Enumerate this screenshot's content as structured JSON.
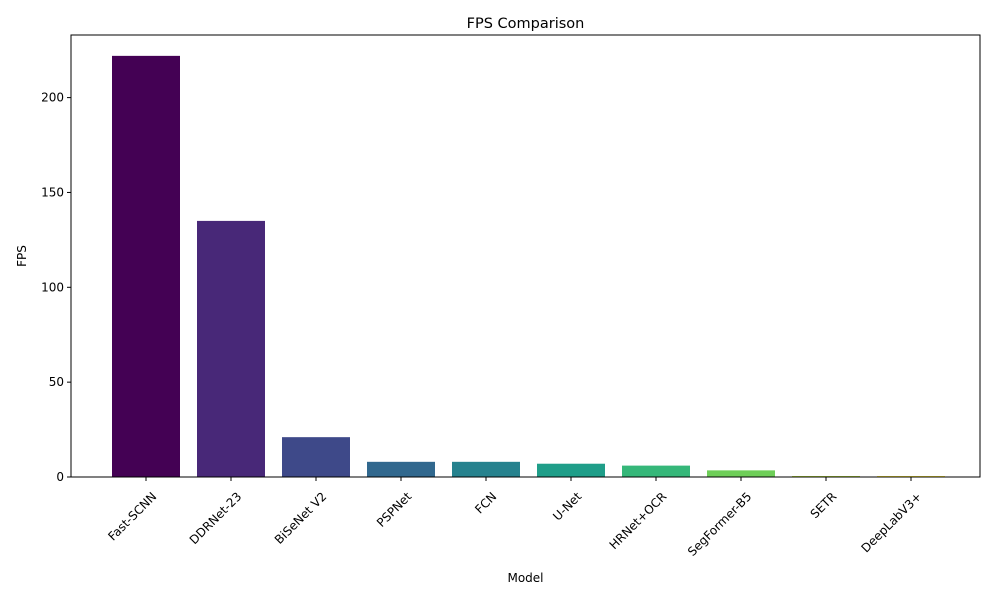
{
  "chart_data": {
    "type": "bar",
    "title": "FPS Comparison",
    "xlabel": "Model",
    "ylabel": "FPS",
    "categories": [
      "Fast-SCNN",
      "DDRNet-23",
      "BiSeNet V2",
      "PSPNet",
      "FCN",
      "U-Net",
      "HRNet+OCR",
      "SegFormer-B5",
      "SETR",
      "DeepLabV3+"
    ],
    "values": [
      222,
      135,
      21,
      8,
      8,
      7,
      6,
      3.5,
      0.5,
      0.5
    ],
    "colors": [
      "#440154",
      "#482878",
      "#3e4989",
      "#31688e",
      "#26828e",
      "#1f9e89",
      "#35b779",
      "#6ece58",
      "#b5de2b",
      "#fde725"
    ],
    "ylim": [
      0,
      233
    ],
    "yticks": [
      0,
      50,
      100,
      150,
      200
    ],
    "xtick_rotation": 45,
    "grid": false,
    "legend": "none"
  }
}
